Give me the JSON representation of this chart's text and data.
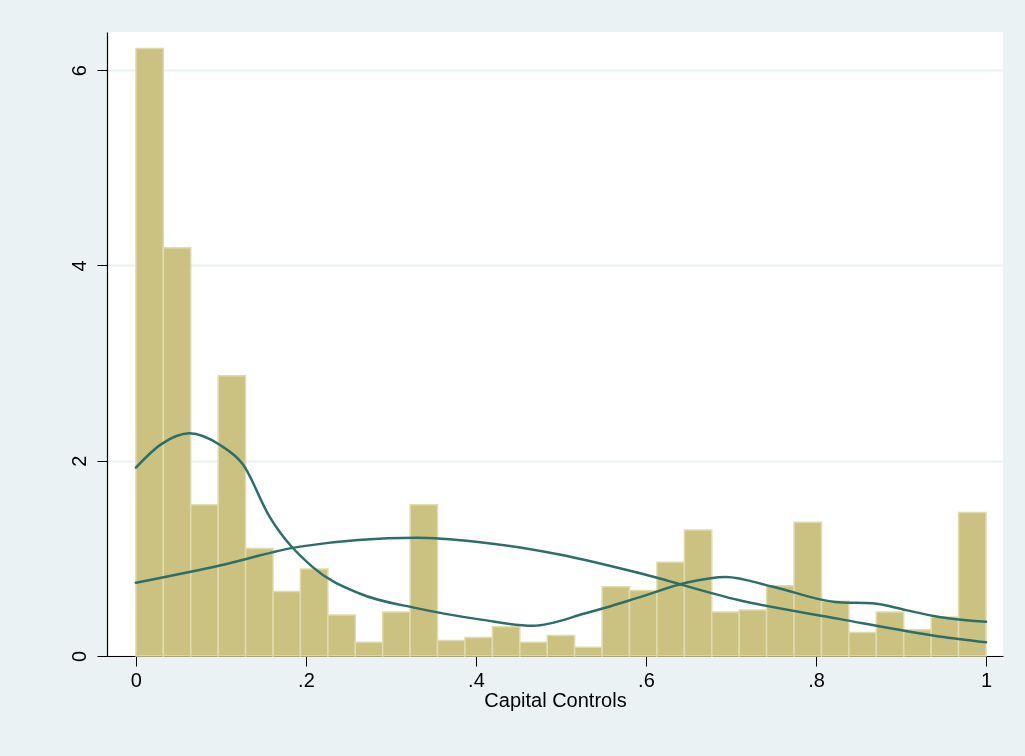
{
  "chart_data": {
    "type": "histogram",
    "xlabel": "Capital Controls",
    "color": "#cbc281",
    "bins": [
      0,
      0.0323,
      0.0645,
      0.0968,
      0.129,
      0.1613,
      0.1935,
      0.2258,
      0.2581,
      0.2903,
      0.3226,
      0.3548,
      0.3871,
      0.4194,
      0.4516,
      0.4839,
      0.5161,
      0.5484,
      0.5806,
      0.6129,
      0.6452,
      0.6774,
      0.7097,
      0.7419,
      0.7742,
      0.8065,
      0.8387,
      0.871,
      0.9032,
      0.9355,
      0.9677,
      1
    ],
    "values": [
      6.22,
      4.18,
      1.55,
      2.87,
      1.1,
      0.66,
      0.89,
      0.42,
      0.14,
      0.45,
      1.55,
      0.16,
      0.19,
      0.3,
      0.14,
      0.21,
      0.09,
      0.71,
      0.67,
      0.96,
      1.29,
      0.45,
      0.47,
      0.72,
      1.37,
      0.56,
      0.24,
      0.45,
      0.27,
      0.4,
      1.47
    ],
    "series": [
      {
        "type": "line",
        "color": "#2e6e69",
        "x": [
          0,
          0.03,
          0.063,
          0.099,
          0.126,
          0.157,
          0.208,
          0.263,
          0.33,
          0.408,
          0.467,
          0.53,
          0.592,
          0.647,
          0.694,
          0.749,
          0.827,
          0.866,
          0.906,
          0.945,
          1
        ],
        "values": [
          1.93,
          2.17,
          2.28,
          2.16,
          1.96,
          1.43,
          0.91,
          0.64,
          0.49,
          0.37,
          0.31,
          0.44,
          0.6,
          0.75,
          0.81,
          0.71,
          0.55,
          0.54,
          0.47,
          0.4,
          0.35
        ]
      },
      {
        "type": "line",
        "color": "#2e6e69",
        "x": [
          0,
          0.1,
          0.193,
          0.33,
          0.4,
          0.498,
          0.592,
          0.71,
          0.827,
          0.945,
          1
        ],
        "values": [
          0.75,
          0.93,
          1.12,
          1.21,
          1.17,
          1.04,
          0.85,
          0.57,
          0.38,
          0.2,
          0.14
        ]
      }
    ],
    "xlim": [
      -0.034,
      1.02
    ],
    "xticks": [
      0,
      {
        "value": 0.2,
        "label": ".2"
      },
      {
        "value": 0.4,
        "label": ".4"
      },
      {
        "value": 0.6,
        "label": ".6"
      },
      {
        "value": 0.8,
        "label": ".8"
      },
      1
    ],
    "ylim": [
      0,
      6.39
    ],
    "yticks": [
      0,
      2,
      4,
      6
    ],
    "grid": "y"
  }
}
